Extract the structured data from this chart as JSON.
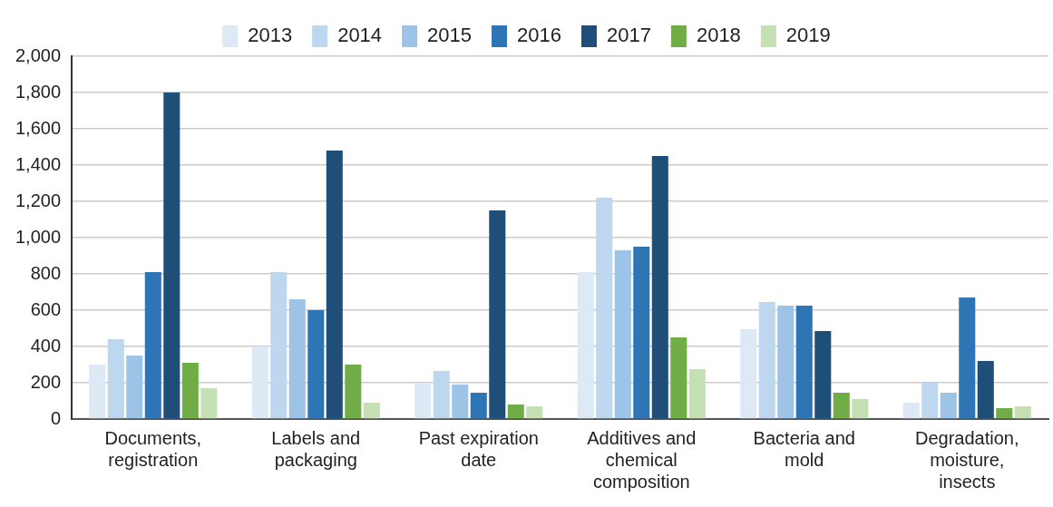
{
  "chart_data": {
    "type": "bar",
    "categories": [
      "Documents, registration",
      "Labels and packaging",
      "Past expiration date",
      "Additives and chemical composition",
      "Bacteria and mold",
      "Degradation, moisture, insects"
    ],
    "series": [
      {
        "name": "2013",
        "color": "#dde9f5",
        "values": [
          300,
          400,
          200,
          810,
          495,
          90
        ]
      },
      {
        "name": "2014",
        "color": "#bdd7ee",
        "values": [
          440,
          810,
          265,
          1220,
          645,
          200
        ]
      },
      {
        "name": "2015",
        "color": "#9dc3e6",
        "values": [
          350,
          660,
          190,
          930,
          625,
          145
        ]
      },
      {
        "name": "2016",
        "color": "#2e75b6",
        "values": [
          810,
          600,
          145,
          950,
          625,
          670
        ]
      },
      {
        "name": "2017",
        "color": "#1f4e79",
        "values": [
          1800,
          1480,
          1150,
          1450,
          485,
          320
        ]
      },
      {
        "name": "2018",
        "color": "#70ad47",
        "values": [
          310,
          300,
          80,
          450,
          145,
          60
        ]
      },
      {
        "name": "2019",
        "color": "#c5e0b4",
        "values": [
          170,
          90,
          70,
          275,
          110,
          70
        ]
      }
    ],
    "ylim": [
      0,
      2000
    ],
    "yticks": [
      0,
      200,
      400,
      600,
      800,
      {
        "value": 1000,
        "label": "1,000"
      },
      {
        "value": 1200,
        "label": "1,200"
      },
      {
        "value": 1400,
        "label": "1,400"
      },
      {
        "value": 1600,
        "label": "1,600"
      },
      {
        "value": 1800,
        "label": "1,800"
      },
      {
        "value": 2000,
        "label": "2,000"
      }
    ],
    "grid": "y",
    "legend": "top"
  }
}
